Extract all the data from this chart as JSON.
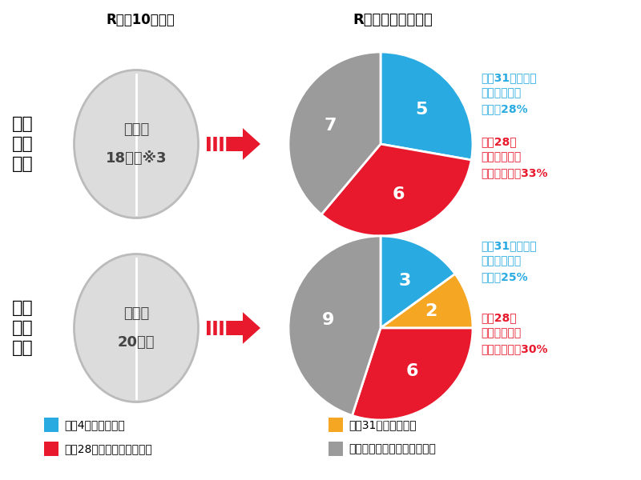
{
  "title_left": "R４年10月時点",
  "title_right": "R５年３月分析時点",
  "row1_label": "調査\n基準\n価格",
  "row2_label": "最低\n制限\n価格",
  "row1_circle_text1": "非公表",
  "row1_circle_text2": "18団体※3",
  "row2_circle_text1": "非公表",
  "row2_circle_text2": "20団体",
  "pie1_values": [
    5,
    6,
    7
  ],
  "pie1_colors": [
    "#29ABE2",
    "#E8192C",
    "#9B9B9B"
  ],
  "pie1_labels": [
    "5",
    "6",
    "7"
  ],
  "pie2_values": [
    3,
    2,
    6,
    9
  ],
  "pie2_colors": [
    "#29ABE2",
    "#F5A623",
    "#E8192C",
    "#9B9B9B"
  ],
  "pie2_labels": [
    "3",
    "2",
    "6",
    "9"
  ],
  "annotation1_blue": "平成31年モデル\n以上の水準は\n全体の28%",
  "annotation1_red": "平成28年\nモデル以前の\n水準は全体の33%",
  "annotation2_blue": "平成31年モデル\n以上の水準は\n全体の25%",
  "annotation2_red": "平成28年\nモデル以前の\n水準は全体の30%",
  "legend_items": [
    {
      "label": "令和4年モデル水準",
      "color": "#29ABE2"
    },
    {
      "label": "平成31年モデル水準",
      "color": "#F5A623"
    },
    {
      "label": "平成28年モデル以前の水準",
      "color": "#E8192C"
    },
    {
      "label": "追加調査においても回答無し",
      "color": "#9B9B9B"
    }
  ],
  "bg_color": "#FFFFFF",
  "blue_text_color": "#29ABE2",
  "red_text_color": "#E8192C",
  "arrow_color": "#E8192C",
  "ellipse_fill": "#DCDCDC",
  "ellipse_edge": "#BBBBBB"
}
